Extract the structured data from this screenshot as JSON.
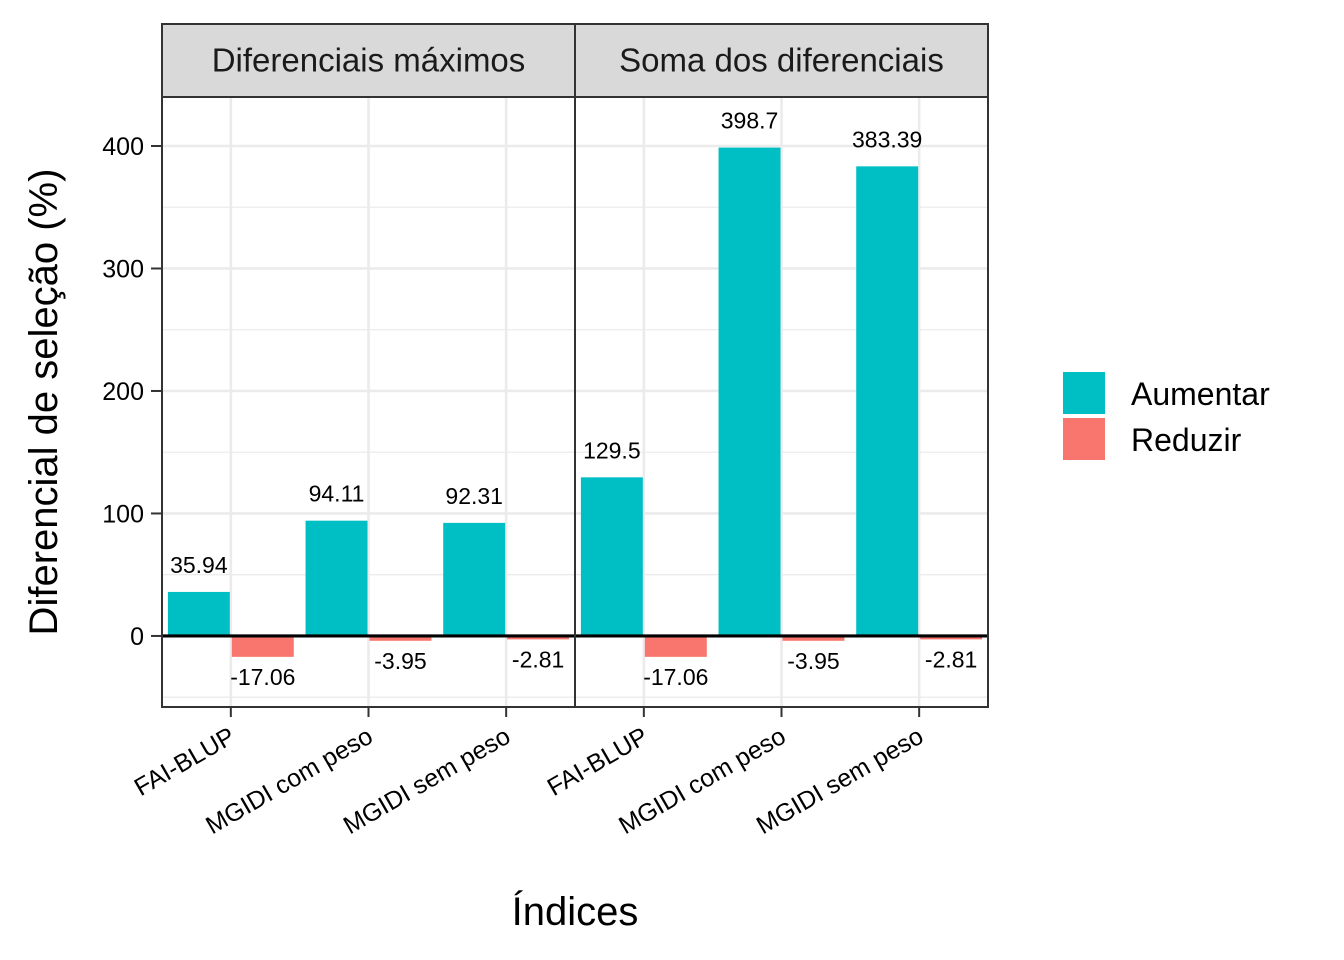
{
  "chart_data": {
    "type": "bar",
    "xlabel": "Índices",
    "ylabel": "Diferencial de seleção (%)",
    "ylim": [
      -58,
      440
    ],
    "yticks": [
      0,
      100,
      200,
      300,
      400
    ],
    "grid": true,
    "legend_position": "right",
    "categories": [
      "FAI-BLUP",
      "MGIDI com peso",
      "MGIDI sem peso"
    ],
    "series": [
      {
        "name": "Aumentar",
        "color": "#00BFC4"
      },
      {
        "name": "Reduzir",
        "color": "#F8766D"
      }
    ],
    "facets": [
      {
        "title": "Diferenciais máximos",
        "values": {
          "Aumentar": [
            35.94,
            94.11,
            92.31
          ],
          "Reduzir": [
            -17.06,
            -3.95,
            -2.81
          ]
        },
        "labels": {
          "Aumentar": [
            "35.94",
            "94.11",
            "92.31"
          ],
          "Reduzir": [
            "-17.06",
            "-3.95",
            "-2.81"
          ]
        }
      },
      {
        "title": "Soma dos diferenciais",
        "values": {
          "Aumentar": [
            129.5,
            398.7,
            383.39
          ],
          "Reduzir": [
            -17.06,
            -3.95,
            -2.81
          ]
        },
        "labels": {
          "Aumentar": [
            "129.5",
            "398.7",
            "383.39"
          ],
          "Reduzir": [
            "-17.06",
            "-3.95",
            "-2.81"
          ]
        }
      }
    ]
  }
}
